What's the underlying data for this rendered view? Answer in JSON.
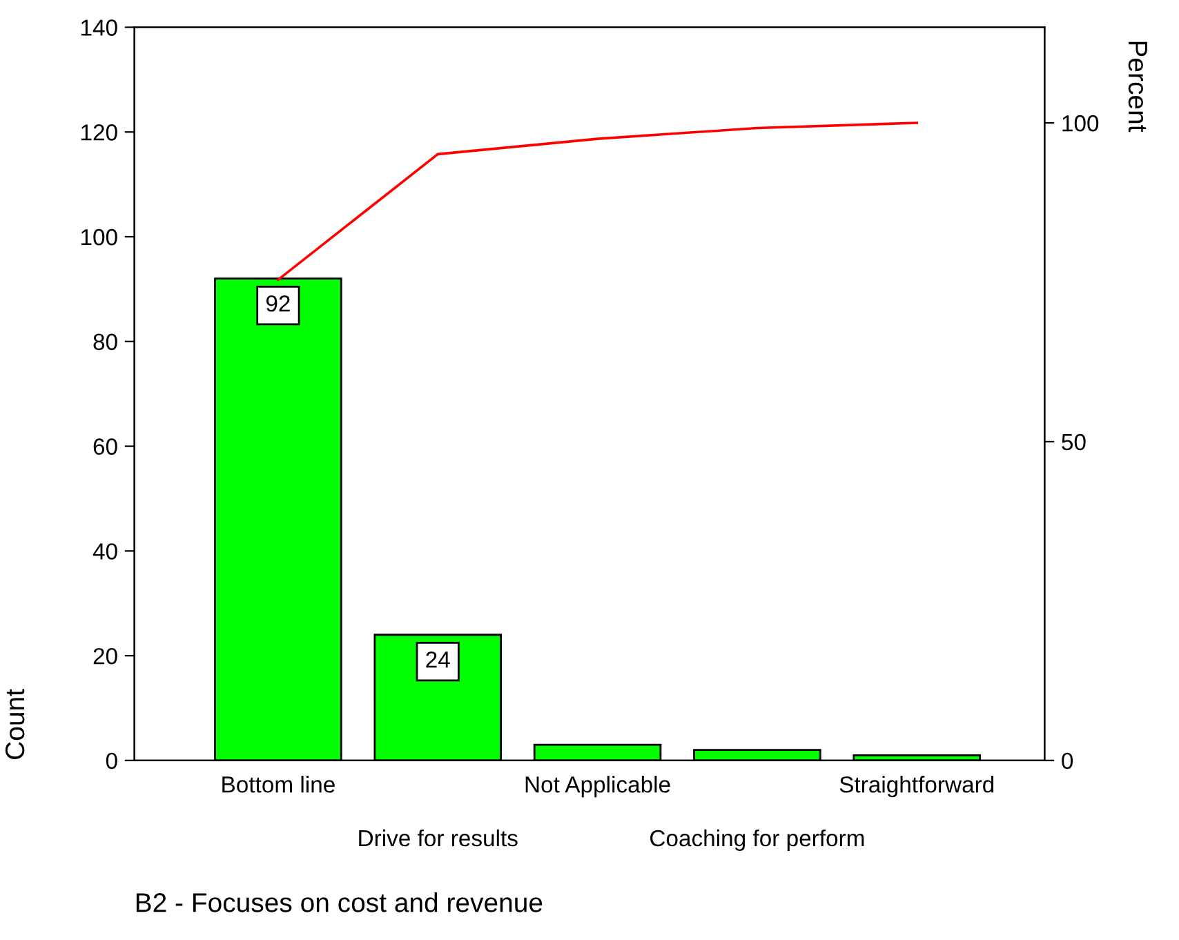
{
  "chart_data": {
    "type": "bar",
    "xlabel": "B2 - Focuses on cost and revenue",
    "ylabel": "Count",
    "y2label": "Percent",
    "categories": [
      "Bottom line",
      "Drive for results",
      "Not Applicable",
      "Coaching for perform",
      "Straightforward"
    ],
    "series": [
      {
        "color": "#00ff00",
        "values": [
          92,
          24,
          3,
          2,
          1
        ],
        "value_labels": [
          "92",
          "24",
          null,
          null,
          null
        ]
      },
      {
        "type": "line",
        "axis": "y2",
        "color": "#ff0000",
        "values": [
          75.4,
          95.1,
          97.5,
          99.2,
          100
        ]
      }
    ],
    "ylim": [
      0,
      140
    ],
    "yticks": [
      0,
      20,
      40,
      60,
      80,
      100,
      120,
      140
    ],
    "y2lim": [
      0,
      115
    ],
    "y2ticks": [
      0,
      50,
      100
    ],
    "grid": false,
    "legend": false,
    "marker": "none",
    "line_style": "solid"
  }
}
